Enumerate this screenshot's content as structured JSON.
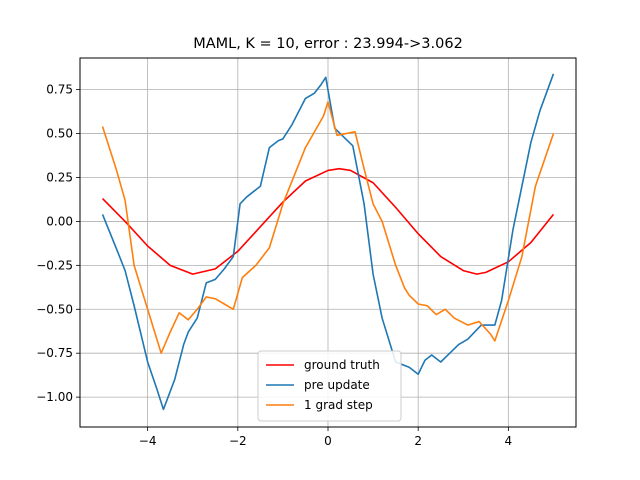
{
  "chart_data": {
    "type": "line",
    "title": "MAML, K = 10, error : 23.994->3.062",
    "xlabel": "",
    "ylabel": "",
    "xlim": [
      -5.5,
      5.5
    ],
    "ylim": [
      -1.17,
      0.93
    ],
    "xticks": [
      -4,
      -2,
      0,
      2,
      4
    ],
    "xtick_labels": [
      "−4",
      "−2",
      "0",
      "2",
      "4"
    ],
    "yticks": [
      -1.0,
      -0.75,
      -0.5,
      -0.25,
      0.0,
      0.25,
      0.5,
      0.75
    ],
    "ytick_labels": [
      "−1.00",
      "−0.75",
      "−0.50",
      "−0.25",
      "0.00",
      "0.25",
      "0.50",
      "0.75"
    ],
    "grid": true,
    "legend_position": "bottom-center",
    "series": [
      {
        "name": "ground truth",
        "color": "#ff0000",
        "x": [
          -5.0,
          -4.5,
          -4.0,
          -3.5,
          -3.0,
          -2.5,
          -2.0,
          -1.5,
          -1.0,
          -0.5,
          0.0,
          0.25,
          0.5,
          1.0,
          1.5,
          2.0,
          2.5,
          3.0,
          3.3,
          3.5,
          4.0,
          4.5,
          5.0
        ],
        "y": [
          0.13,
          0.0,
          -0.14,
          -0.25,
          -0.3,
          -0.27,
          -0.17,
          -0.03,
          0.11,
          0.23,
          0.29,
          0.3,
          0.29,
          0.22,
          0.08,
          -0.07,
          -0.2,
          -0.28,
          -0.3,
          -0.29,
          -0.23,
          -0.12,
          0.04
        ]
      },
      {
        "name": "pre update",
        "color": "#1f77b4",
        "x": [
          -5.0,
          -4.7,
          -4.5,
          -4.3,
          -4.0,
          -3.8,
          -3.65,
          -3.4,
          -3.2,
          -3.1,
          -2.9,
          -2.7,
          -2.5,
          -2.3,
          -2.1,
          -1.95,
          -1.8,
          -1.5,
          -1.3,
          -1.1,
          -1.0,
          -0.8,
          -0.5,
          -0.3,
          -0.15,
          -0.05,
          0.15,
          0.35,
          0.55,
          0.8,
          1.0,
          1.2,
          1.5,
          1.8,
          2.0,
          2.15,
          2.3,
          2.5,
          2.7,
          2.9,
          3.1,
          3.4,
          3.7,
          3.85,
          4.1,
          4.5,
          4.7,
          5.0
        ],
        "y": [
          0.04,
          -0.15,
          -0.28,
          -0.48,
          -0.8,
          -0.95,
          -1.07,
          -0.9,
          -0.7,
          -0.63,
          -0.55,
          -0.35,
          -0.33,
          -0.27,
          -0.2,
          0.1,
          0.14,
          0.2,
          0.42,
          0.46,
          0.47,
          0.55,
          0.7,
          0.73,
          0.78,
          0.82,
          0.53,
          0.48,
          0.43,
          0.1,
          -0.3,
          -0.55,
          -0.8,
          -0.83,
          -0.87,
          -0.79,
          -0.76,
          -0.8,
          -0.75,
          -0.7,
          -0.67,
          -0.59,
          -0.59,
          -0.45,
          -0.05,
          0.45,
          0.63,
          0.84
        ]
      },
      {
        "name": "1 grad step",
        "color": "#ff7f0e",
        "x": [
          -5.0,
          -4.7,
          -4.5,
          -4.3,
          -4.0,
          -3.7,
          -3.5,
          -3.3,
          -3.1,
          -2.9,
          -2.7,
          -2.5,
          -2.3,
          -2.1,
          -1.9,
          -1.6,
          -1.3,
          -1.0,
          -0.5,
          -0.1,
          0.0,
          0.2,
          0.6,
          0.8,
          1.0,
          1.2,
          1.5,
          1.7,
          1.8,
          2.0,
          2.2,
          2.4,
          2.6,
          2.8,
          3.1,
          3.35,
          3.6,
          3.7,
          4.0,
          4.3,
          4.6,
          5.0
        ],
        "y": [
          0.54,
          0.3,
          0.12,
          -0.25,
          -0.5,
          -0.75,
          -0.63,
          -0.52,
          -0.56,
          -0.5,
          -0.43,
          -0.44,
          -0.47,
          -0.5,
          -0.32,
          -0.25,
          -0.15,
          0.1,
          0.42,
          0.6,
          0.68,
          0.49,
          0.51,
          0.3,
          0.1,
          0.0,
          -0.25,
          -0.38,
          -0.42,
          -0.47,
          -0.48,
          -0.53,
          -0.5,
          -0.55,
          -0.59,
          -0.57,
          -0.64,
          -0.68,
          -0.45,
          -0.2,
          0.2,
          0.5
        ]
      }
    ]
  }
}
